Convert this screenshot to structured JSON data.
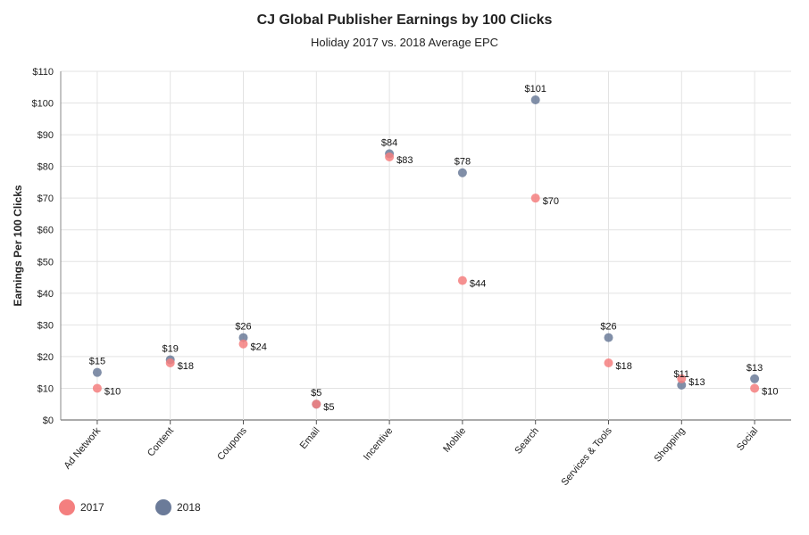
{
  "chart_data": {
    "type": "scatter",
    "title": "CJ Global Publisher Earnings by 100 Clicks",
    "subtitle": "Holiday 2017 vs. 2018 Average EPC",
    "xlabel": "",
    "ylabel": "Earnings Per 100 Clicks",
    "ylim": [
      0,
      110
    ],
    "yticks": [
      0,
      10,
      20,
      30,
      40,
      50,
      60,
      70,
      80,
      90,
      100,
      110
    ],
    "ytick_labels": [
      "$0",
      "$10",
      "$20",
      "$30",
      "$40",
      "$50",
      "$60",
      "$70",
      "$80",
      "$90",
      "$100",
      "$110"
    ],
    "categories": [
      "Ad Network",
      "Content",
      "Coupons",
      "Email",
      "Incentive",
      "Mobile",
      "Search",
      "Services & Tools",
      "Shopping",
      "Social"
    ],
    "grid": true,
    "legend_position": "bottom-left",
    "series": [
      {
        "name": "2017",
        "color": "#f47f7f",
        "values": [
          10,
          18,
          24,
          5,
          83,
          44,
          70,
          18,
          13,
          10
        ],
        "labels": [
          "$10",
          "$18",
          "$24",
          "$5",
          "$83",
          "$44",
          "$70",
          "$18",
          "$13",
          "$10"
        ]
      },
      {
        "name": "2018",
        "color": "#6b7b99",
        "values": [
          15,
          19,
          26,
          5,
          84,
          78,
          101,
          26,
          11,
          13
        ],
        "labels": [
          "$15",
          "$19",
          "$26",
          "$5",
          "$84",
          "$78",
          "$101",
          "$26",
          "$11",
          "$13"
        ]
      }
    ]
  }
}
